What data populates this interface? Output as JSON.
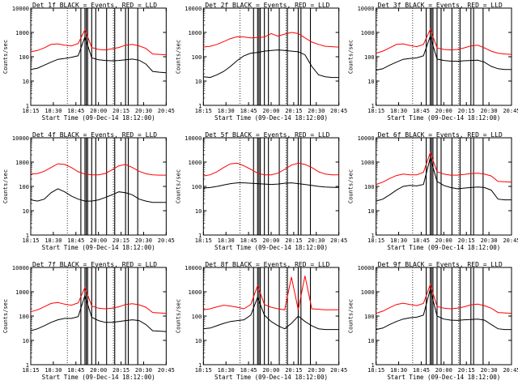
{
  "window": {
    "common_xlabel": "Start Time (09-Dec-14 18:12:00)",
    "common_ylabel": "Counts/sec",
    "x_ticks": [
      "18:15",
      "18:30",
      "18:45",
      "20:00",
      "20:15",
      "20:30",
      "20:45"
    ],
    "y_ticks": [
      "1",
      "10",
      "100",
      "1000",
      "10000"
    ]
  },
  "colors": {
    "events": "#000000",
    "lld": "#ff0000",
    "axes": "#000000"
  },
  "chart_data": [
    {
      "type": "line",
      "title": "Det 1f BLACK = Events, RED = LLD",
      "xlabel": "Start Time (09-Dec-14 18:12:00)",
      "ylabel": "Counts/sec",
      "ylog": true,
      "ylim": [
        1,
        10000
      ],
      "x": [
        0,
        0.05,
        0.1,
        0.15,
        0.2,
        0.25,
        0.3,
        0.35,
        0.4,
        0.45,
        0.5,
        0.55,
        0.6,
        0.65,
        0.7,
        0.75,
        0.8,
        0.85,
        0.9,
        0.95,
        1.0
      ],
      "series": [
        {
          "name": "Events",
          "color": "#000000",
          "values": [
            30,
            34,
            45,
            60,
            78,
            85,
            95,
            110,
            650,
            90,
            75,
            70,
            68,
            70,
            75,
            80,
            72,
            50,
            25,
            23,
            22
          ]
        },
        {
          "name": "LLD",
          "color": "#ff0000",
          "values": [
            160,
            180,
            230,
            320,
            340,
            300,
            280,
            350,
            1300,
            240,
            200,
            190,
            210,
            240,
            300,
            320,
            280,
            220,
            130,
            125,
            120
          ]
        }
      ]
    },
    {
      "type": "line",
      "title": "Det 2f BLACK = Events, RED = LLD",
      "xlabel": "Start Time (09-Dec-14 18:12:00)",
      "ylabel": "Counts/sec",
      "ylog": true,
      "ylim": [
        1,
        10000
      ],
      "x": [
        0,
        0.05,
        0.1,
        0.15,
        0.2,
        0.25,
        0.3,
        0.35,
        0.4,
        0.45,
        0.5,
        0.55,
        0.6,
        0.65,
        0.7,
        0.75,
        0.8,
        0.85,
        0.9,
        0.95,
        1.0
      ],
      "series": [
        {
          "name": "Events",
          "color": "#000000",
          "values": [
            15,
            14,
            18,
            25,
            40,
            70,
            110,
            140,
            150,
            170,
            180,
            190,
            180,
            170,
            160,
            120,
            40,
            18,
            15,
            14,
            14
          ]
        },
        {
          "name": "LLD",
          "color": "#ff0000",
          "values": [
            250,
            270,
            320,
            420,
            560,
            660,
            650,
            600,
            620,
            640,
            900,
            700,
            850,
            1000,
            900,
            600,
            400,
            320,
            270,
            260,
            250
          ]
        }
      ]
    },
    {
      "type": "line",
      "title": "Det 3f BLACK = Events, RED = LLD",
      "xlabel": "",
      "ylabel": "Counts/sec",
      "ylog": true,
      "ylim": [
        1,
        10000
      ],
      "x": [
        0,
        0.05,
        0.1,
        0.15,
        0.2,
        0.25,
        0.3,
        0.35,
        0.4,
        0.45,
        0.5,
        0.55,
        0.6,
        0.65,
        0.7,
        0.75,
        0.8,
        0.85,
        0.9,
        0.95,
        1.0
      ],
      "series": [
        {
          "name": "Events",
          "color": "#000000",
          "values": [
            28,
            32,
            45,
            60,
            78,
            85,
            90,
            110,
            700,
            80,
            70,
            66,
            65,
            68,
            70,
            72,
            60,
            40,
            32,
            30,
            30
          ]
        },
        {
          "name": "LLD",
          "color": "#ff0000",
          "values": [
            140,
            170,
            230,
            320,
            340,
            290,
            260,
            320,
            1350,
            230,
            200,
            190,
            200,
            230,
            280,
            300,
            230,
            170,
            140,
            130,
            125
          ]
        }
      ]
    },
    {
      "type": "line",
      "title": "Det 4f BLACK = Events, RED = LLD",
      "xlabel": "Start Time (09-Dec-14 18:12:00)",
      "ylabel": "Counts/sec",
      "ylog": true,
      "ylim": [
        1,
        10000
      ],
      "x": [
        0,
        0.05,
        0.1,
        0.15,
        0.2,
        0.25,
        0.3,
        0.35,
        0.4,
        0.45,
        0.5,
        0.55,
        0.6,
        0.65,
        0.7,
        0.75,
        0.8,
        0.85,
        0.9,
        0.95,
        1.0
      ],
      "series": [
        {
          "name": "Events",
          "color": "#000000",
          "values": [
            28,
            25,
            30,
            55,
            80,
            60,
            40,
            30,
            25,
            25,
            28,
            35,
            45,
            60,
            55,
            45,
            30,
            25,
            22,
            22,
            22
          ]
        },
        {
          "name": "LLD",
          "color": "#ff0000",
          "values": [
            320,
            340,
            420,
            600,
            850,
            800,
            600,
            400,
            320,
            300,
            300,
            340,
            480,
            700,
            800,
            600,
            420,
            330,
            300,
            290,
            290
          ]
        }
      ]
    },
    {
      "type": "line",
      "title": "Det 5f BLACK = Events, RED = LLD",
      "xlabel": "Start Time (09-Dec-14 18:12:00)",
      "ylabel": "Counts/sec",
      "ylog": true,
      "ylim": [
        1,
        10000
      ],
      "x": [
        0,
        0.05,
        0.1,
        0.15,
        0.2,
        0.25,
        0.3,
        0.35,
        0.4,
        0.45,
        0.5,
        0.55,
        0.6,
        0.65,
        0.7,
        0.75,
        0.8,
        0.85,
        0.9,
        0.95,
        1.0
      ],
      "series": [
        {
          "name": "Events",
          "color": "#000000",
          "values": [
            85,
            90,
            100,
            115,
            130,
            140,
            140,
            135,
            130,
            125,
            120,
            125,
            135,
            140,
            130,
            120,
            110,
            100,
            95,
            92,
            90
          ]
        },
        {
          "name": "LLD",
          "color": "#ff0000",
          "values": [
            270,
            300,
            400,
            600,
            850,
            900,
            700,
            500,
            350,
            300,
            300,
            350,
            500,
            750,
            900,
            800,
            600,
            400,
            320,
            300,
            300
          ]
        }
      ]
    },
    {
      "type": "line",
      "title": "Det 6f BLACK = Events, RED = LLD",
      "xlabel": "",
      "ylabel": "Counts/sec",
      "ylog": true,
      "ylim": [
        1,
        10000
      ],
      "x": [
        0,
        0.05,
        0.1,
        0.15,
        0.2,
        0.25,
        0.3,
        0.35,
        0.4,
        0.45,
        0.5,
        0.55,
        0.6,
        0.65,
        0.7,
        0.75,
        0.8,
        0.85,
        0.9,
        0.95,
        1.0
      ],
      "series": [
        {
          "name": "Events",
          "color": "#000000",
          "values": [
            25,
            30,
            45,
            70,
            100,
            110,
            105,
            120,
            1500,
            160,
            110,
            90,
            80,
            85,
            90,
            95,
            90,
            70,
            30,
            28,
            28
          ]
        },
        {
          "name": "LLD",
          "color": "#ff0000",
          "values": [
            120,
            150,
            210,
            280,
            320,
            300,
            300,
            380,
            2500,
            400,
            320,
            290,
            290,
            310,
            340,
            350,
            320,
            270,
            160,
            155,
            150
          ]
        }
      ]
    },
    {
      "type": "line",
      "title": "Det 7f BLACK = Events, RED = LLD",
      "xlabel": "Start Time (09-Dec-14 18:12:00)",
      "ylabel": "Counts/sec",
      "ylog": true,
      "ylim": [
        1,
        10000
      ],
      "x": [
        0,
        0.05,
        0.1,
        0.15,
        0.2,
        0.25,
        0.3,
        0.35,
        0.4,
        0.45,
        0.5,
        0.55,
        0.6,
        0.65,
        0.7,
        0.75,
        0.8,
        0.85,
        0.9,
        0.95,
        1.0
      ],
      "series": [
        {
          "name": "Events",
          "color": "#000000",
          "values": [
            25,
            30,
            40,
            55,
            70,
            80,
            80,
            95,
            700,
            90,
            65,
            55,
            55,
            60,
            65,
            70,
            65,
            45,
            25,
            24,
            23
          ]
        },
        {
          "name": "LLD",
          "color": "#ff0000",
          "values": [
            150,
            180,
            240,
            330,
            360,
            310,
            280,
            350,
            1500,
            260,
            210,
            200,
            210,
            240,
            300,
            320,
            290,
            230,
            140,
            135,
            130
          ]
        }
      ]
    },
    {
      "type": "line",
      "title": "Det 8f BLACK = Events, RED = LLD",
      "xlabel": "Start Time (09-Dec-14 18:12:00)",
      "ylabel": "Counts/sec",
      "ylog": true,
      "ylim": [
        1,
        10000
      ],
      "x": [
        0,
        0.05,
        0.1,
        0.15,
        0.2,
        0.25,
        0.3,
        0.35,
        0.4,
        0.45,
        0.5,
        0.55,
        0.6,
        0.65,
        0.7,
        0.75,
        0.8,
        0.85,
        0.9,
        0.95,
        1.0
      ],
      "series": [
        {
          "name": "Events",
          "color": "#000000",
          "values": [
            30,
            32,
            40,
            50,
            60,
            65,
            70,
            110,
            600,
            110,
            60,
            40,
            30,
            50,
            100,
            60,
            40,
            30,
            28,
            28,
            28
          ]
        },
        {
          "name": "LLD",
          "color": "#ff0000",
          "values": [
            180,
            200,
            240,
            280,
            260,
            230,
            200,
            300,
            1800,
            300,
            230,
            200,
            180,
            4000,
            180,
            4500,
            200,
            190,
            180,
            180,
            180
          ]
        }
      ]
    },
    {
      "type": "line",
      "title": "Det 9f BLACK = Events, RED = LLD",
      "xlabel": "Start Time (09-Dec-14 18:12:00)",
      "ylabel": "Counts/sec",
      "ylog": true,
      "ylim": [
        1,
        10000
      ],
      "x": [
        0,
        0.05,
        0.1,
        0.15,
        0.2,
        0.25,
        0.3,
        0.35,
        0.4,
        0.45,
        0.5,
        0.55,
        0.6,
        0.65,
        0.7,
        0.75,
        0.8,
        0.85,
        0.9,
        0.95,
        1.0
      ],
      "series": [
        {
          "name": "Events",
          "color": "#000000",
          "values": [
            28,
            32,
            45,
            60,
            75,
            85,
            90,
            110,
            1300,
            100,
            75,
            68,
            66,
            70,
            72,
            75,
            68,
            45,
            30,
            28,
            28
          ]
        },
        {
          "name": "LLD",
          "color": "#ff0000",
          "values": [
            130,
            160,
            220,
            300,
            340,
            300,
            270,
            330,
            2000,
            250,
            210,
            200,
            210,
            240,
            290,
            310,
            270,
            210,
            140,
            135,
            130
          ]
        }
      ]
    }
  ]
}
